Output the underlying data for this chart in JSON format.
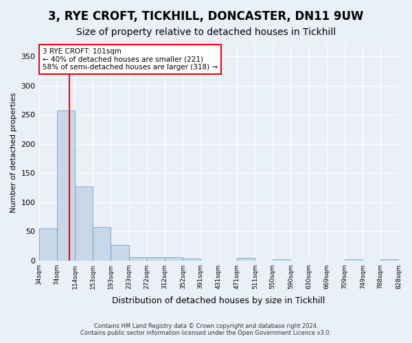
{
  "title1": "3, RYE CROFT, TICKHILL, DONCASTER, DN11 9UW",
  "title2": "Size of property relative to detached houses in Tickhill",
  "xlabel": "Distribution of detached houses by size in Tickhill",
  "ylabel": "Number of detached properties",
  "footer1": "Contains HM Land Registry data © Crown copyright and database right 2024.",
  "footer2": "Contains public sector information licensed under the Open Government Licence v3.0.",
  "annotation_line1": "3 RYE CROFT: 101sqm",
  "annotation_line2": "← 40% of detached houses are smaller (221)",
  "annotation_line3": "58% of semi-detached houses are larger (318) →",
  "bar_color": "#c8d8e8",
  "bar_edge_color": "#5a8fc0",
  "redline_x": 101,
  "bin_edges": [
    34,
    74,
    114,
    153,
    193,
    233,
    272,
    312,
    352,
    391,
    431,
    471,
    511,
    550,
    590,
    630,
    669,
    709,
    749,
    788,
    828
  ],
  "tick_labels": [
    "34sqm",
    "74sqm",
    "114sqm",
    "153sqm",
    "193sqm",
    "233sqm",
    "272sqm",
    "312sqm",
    "352sqm",
    "391sqm",
    "431sqm",
    "471sqm",
    "511sqm",
    "550sqm",
    "590sqm",
    "630sqm",
    "669sqm",
    "709sqm",
    "749sqm",
    "788sqm",
    "828sqm"
  ],
  "values": [
    55,
    257,
    127,
    57,
    27,
    5,
    6,
    6,
    3,
    0,
    0,
    4,
    0,
    2,
    0,
    0,
    0,
    2,
    0,
    2
  ],
  "ylim": [
    0,
    370
  ],
  "yticks": [
    0,
    50,
    100,
    150,
    200,
    250,
    300,
    350
  ],
  "background_color": "#eaf0f8",
  "plot_bg_color": "#eaf0f8",
  "grid_color": "#ffffff",
  "title_fontsize": 12,
  "subtitle_fontsize": 10
}
